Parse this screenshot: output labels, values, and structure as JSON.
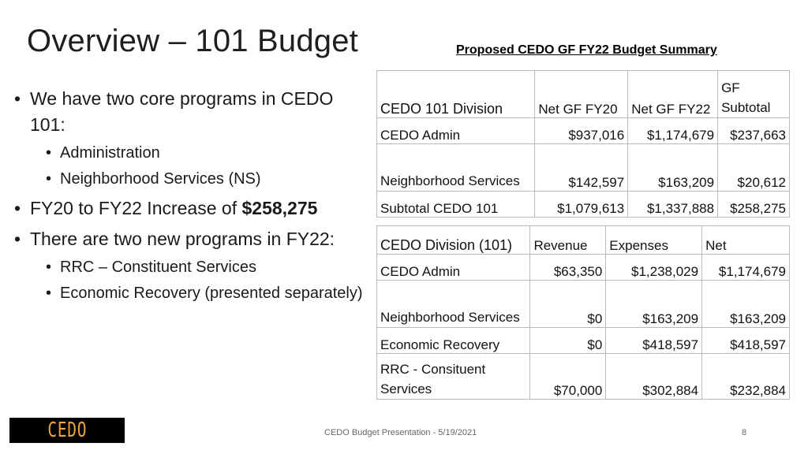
{
  "slide": {
    "title": "Overview – 101 Budget",
    "table_heading": "Proposed CEDO GF FY22 Budget Summary",
    "bullets": {
      "b1": "We have two core programs in CEDO 101:",
      "b1_sub": [
        "Administration",
        "Neighborhood Services (NS)"
      ],
      "b2_prefix": "FY20 to FY22 Increase of ",
      "b2_value": "$258,275",
      "b3": "There are two new programs in FY22:",
      "b3_sub": [
        "RRC – Constituent Services",
        "Economic Recovery (presented separately)"
      ]
    },
    "table1": {
      "headers": [
        "CEDO 101 Division",
        "Net GF FY20",
        "Net GF FY22",
        "GF Subtotal"
      ],
      "rows": [
        [
          "CEDO Admin",
          "$937,016",
          "$1,174,679",
          "$237,663"
        ],
        [
          "Neighborhood Services",
          "$142,597",
          "$163,209",
          "$20,612"
        ],
        [
          "Subtotal CEDO 101",
          "$1,079,613",
          "$1,337,888",
          "$258,275"
        ]
      ]
    },
    "table2": {
      "headers": [
        "CEDO Division (101)",
        "Revenue",
        "Expenses",
        "Net"
      ],
      "rows": [
        [
          "CEDO Admin",
          "$63,350",
          "$1,238,029",
          "$1,174,679"
        ],
        [
          "Neighborhood Services",
          "$0",
          "$163,209",
          "$163,209"
        ],
        [
          "Economic Recovery",
          "$0",
          "$418,597",
          "$418,597"
        ],
        [
          "RRC - Consituent Services",
          "$70,000",
          "$302,884",
          "$232,884"
        ]
      ]
    },
    "logo_text": "CEDO",
    "footer": "CEDO Budget Presentation - 5/19/2021",
    "page_number": "8"
  }
}
